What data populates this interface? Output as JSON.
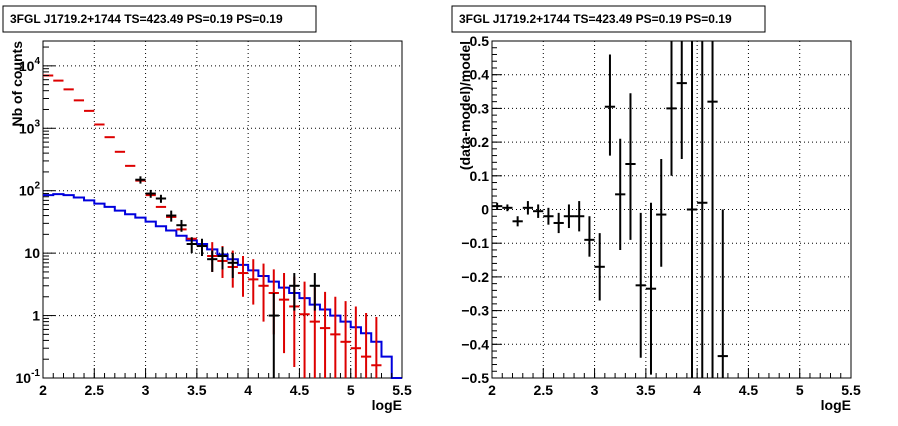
{
  "chart_data": [
    {
      "type": "line",
      "title": "3FGL J1719.2+1744 TS=423.49 PS=0.19 PS=0.19",
      "xlabel": "logE",
      "ylabel": "Nb of counts",
      "xlim": [
        2,
        5.5
      ],
      "ylim": [
        0.1,
        25000
      ],
      "yscale": "log",
      "grid": true,
      "x_ticks": [
        "2",
        "2.5",
        "3",
        "3.5",
        "4",
        "4.5",
        "5",
        "5.5"
      ],
      "y_ticks": [
        {
          "value": 0.1,
          "base": "10",
          "exp": "-1"
        },
        {
          "value": 1,
          "base": "1",
          "exp": ""
        },
        {
          "value": 10,
          "base": "10",
          "exp": ""
        },
        {
          "value": 100,
          "base": "10",
          "exp": "2"
        },
        {
          "value": 1000,
          "base": "10",
          "exp": "3"
        },
        {
          "value": 10000,
          "base": "10",
          "exp": "4"
        }
      ],
      "colors": {
        "data": "#000000",
        "model_points": "#dd0000",
        "model_hist": "#0000dd"
      },
      "bin_width": 0.1,
      "series": [
        {
          "kind": "step",
          "color": "#0000dd",
          "x": [
            2.05,
            2.15,
            2.25,
            2.35,
            2.45,
            2.55,
            2.65,
            2.75,
            2.85,
            2.95,
            3.05,
            3.15,
            3.25,
            3.35,
            3.45,
            3.55,
            3.65,
            3.75,
            3.85,
            3.95,
            4.05,
            4.15,
            4.25,
            4.35,
            4.45,
            4.55,
            4.65,
            4.75,
            4.85,
            4.95,
            5.05,
            5.15,
            5.25,
            5.35,
            5.45
          ],
          "y": [
            85,
            88,
            85,
            78,
            70,
            62,
            55,
            48,
            42,
            37,
            32,
            27,
            23,
            19,
            16,
            14,
            11.5,
            9.5,
            8,
            6.5,
            5.3,
            4.3,
            3.5,
            2.8,
            2.3,
            1.9,
            1.5,
            1.25,
            1.0,
            0.8,
            0.65,
            0.52,
            0.38,
            0.22,
            0.1
          ]
        },
        {
          "kind": "points",
          "color": "#dd0000",
          "x": [
            2.05,
            2.15,
            2.25,
            2.35,
            2.45,
            2.55,
            2.65,
            2.75,
            2.85,
            2.95,
            3.05,
            3.15,
            3.25,
            3.35,
            3.45,
            3.55,
            3.65,
            3.75,
            3.85,
            3.95,
            4.05,
            4.15,
            4.25,
            4.35,
            4.45,
            4.55,
            4.65,
            4.75,
            4.85,
            4.95,
            5.05,
            5.15,
            5.25
          ],
          "y": [
            7000,
            5800,
            4200,
            2800,
            1900,
            1150,
            720,
            420,
            250,
            145,
            85,
            55,
            38,
            24,
            17,
            13,
            9,
            7.5,
            6,
            4.8,
            3.8,
            3.0,
            2.3,
            1.8,
            1.4,
            1.05,
            0.8,
            0.63,
            0.5,
            0.38,
            0.3,
            0.22,
            0.16
          ],
          "ylow": [
            7000,
            5800,
            4200,
            2800,
            1900,
            1150,
            720,
            420,
            250,
            145,
            85,
            55,
            38,
            24,
            17,
            13,
            5,
            4,
            2.8,
            2,
            1.5,
            0.8,
            0.5,
            0.25,
            0.15,
            0.1,
            0.1,
            0.1,
            0.1,
            0.1,
            0.1,
            0.1,
            0.1
          ],
          "yhigh": [
            7000,
            5800,
            4200,
            2800,
            1900,
            1150,
            720,
            420,
            250,
            145,
            85,
            55,
            38,
            24,
            17,
            13,
            15,
            13,
            11,
            9,
            8,
            6.8,
            5.5,
            4.8,
            4.2,
            3.5,
            2.8,
            2.4,
            2.0,
            1.7,
            1.4,
            1.1,
            0.95
          ]
        },
        {
          "kind": "points",
          "color": "#000000",
          "x": [
            2.95,
            3.05,
            3.15,
            3.25,
            3.35,
            3.45,
            3.55,
            3.65,
            3.75,
            3.85,
            4.25,
            4.45,
            4.65
          ],
          "y": [
            150,
            90,
            75,
            40,
            28,
            14,
            13,
            8,
            9,
            7,
            1,
            3,
            3
          ],
          "ylow": [
            130,
            77,
            64,
            32,
            22,
            10,
            9,
            5,
            5.5,
            4,
            0.1,
            1.2,
            1.2
          ],
          "yhigh": [
            170,
            103,
            86,
            48,
            34,
            18,
            17,
            11,
            12.5,
            10,
            2.3,
            4.8,
            4.8
          ]
        }
      ]
    },
    {
      "type": "scatter",
      "title": "3FGL J1719.2+1744 TS=423.49 PS=0.19 PS=0.19",
      "xlabel": "logE",
      "ylabel": "(data-model)/model",
      "xlim": [
        2,
        5.5
      ],
      "ylim": [
        -0.5,
        0.5
      ],
      "yscale": "linear",
      "grid": true,
      "x_ticks": [
        "2",
        "2.5",
        "3",
        "3.5",
        "4",
        "4.5",
        "5",
        "5.5"
      ],
      "y_ticks": [
        "−0.5",
        "−0.4",
        "−0.3",
        "−0.2",
        "−0.1",
        "0",
        "0.1",
        "0.2",
        "0.3",
        "0.4",
        "0.5"
      ],
      "y_tick_values": [
        -0.5,
        -0.4,
        -0.3,
        -0.2,
        -0.1,
        0,
        0.1,
        0.2,
        0.3,
        0.4,
        0.5
      ],
      "colors": {
        "data": "#000000"
      },
      "bin_width": 0.1,
      "series": [
        {
          "kind": "points",
          "color": "#000000",
          "x": [
            2.05,
            2.15,
            2.25,
            2.35,
            2.45,
            2.55,
            2.65,
            2.75,
            2.85,
            2.95,
            3.05,
            3.15,
            3.25,
            3.35,
            3.45,
            3.55,
            3.65,
            3.75,
            3.85,
            3.95,
            4.05,
            4.15,
            4.25
          ],
          "y": [
            0.01,
            0.005,
            -0.035,
            0.005,
            -0.005,
            -0.02,
            -0.04,
            -0.02,
            -0.02,
            -0.09,
            -0.17,
            0.305,
            0.045,
            0.135,
            -0.225,
            -0.235,
            -0.015,
            0.3,
            0.375,
            0.0,
            0.02,
            0.32,
            -0.435
          ],
          "ylow": [
            0.0,
            -0.005,
            -0.05,
            -0.015,
            -0.025,
            -0.045,
            -0.07,
            -0.055,
            -0.065,
            -0.14,
            -0.27,
            0.16,
            -0.12,
            -0.09,
            -0.44,
            -0.49,
            -0.17,
            0.1,
            0.15,
            -0.5,
            -0.5,
            -0.5,
            -0.5
          ],
          "yhigh": [
            0.02,
            0.015,
            -0.02,
            0.025,
            0.015,
            0.005,
            -0.01,
            0.015,
            0.025,
            -0.02,
            -0.07,
            0.46,
            0.21,
            0.345,
            -0.01,
            0.02,
            0.15,
            0.5,
            0.5,
            0.5,
            0.5,
            0.5,
            0.0
          ]
        }
      ]
    }
  ]
}
